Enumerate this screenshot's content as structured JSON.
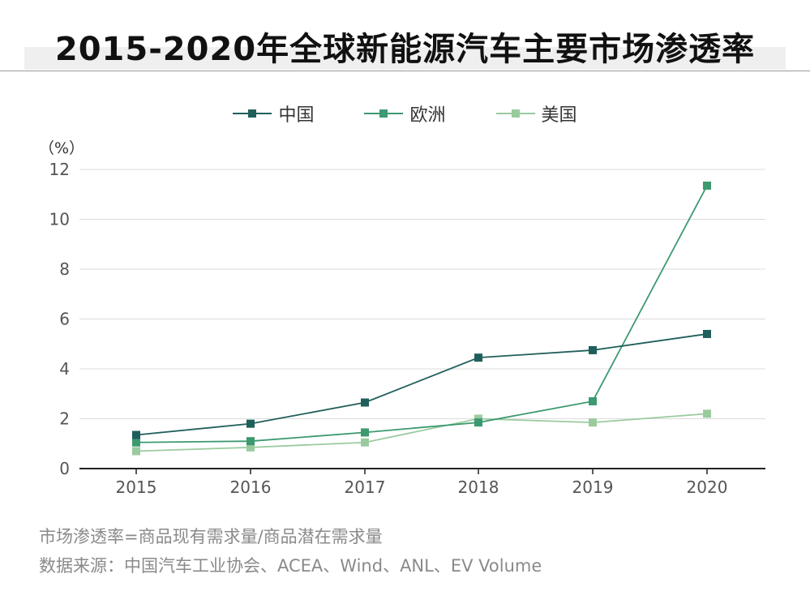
{
  "title": "2015-2020年全球新能源汽车主要市场渗透率",
  "unit_label": "（%）",
  "legend": [
    {
      "label": "中国",
      "color": "#1f5f5b"
    },
    {
      "label": "欧洲",
      "color": "#3d9970"
    },
    {
      "label": "美国",
      "color": "#9acb9e"
    }
  ],
  "chart_data": {
    "type": "line",
    "x": [
      "2015",
      "2016",
      "2017",
      "2018",
      "2019",
      "2020"
    ],
    "series": [
      {
        "name": "中国",
        "color": "#1f5f5b",
        "values": [
          1.35,
          1.8,
          2.65,
          4.45,
          4.75,
          5.4
        ]
      },
      {
        "name": "欧洲",
        "color": "#3d9970",
        "values": [
          1.05,
          1.1,
          1.45,
          1.85,
          2.7,
          11.35
        ]
      },
      {
        "name": "美国",
        "color": "#9acb9e",
        "values": [
          0.7,
          0.85,
          1.05,
          2.0,
          1.85,
          2.2
        ]
      }
    ],
    "ylim": [
      0,
      12
    ],
    "yticks": [
      0,
      2,
      4,
      6,
      8,
      10,
      12
    ],
    "ylabel": "（%）",
    "xlabel": "",
    "grid": true,
    "legend_position": "top-center"
  },
  "notes": {
    "definition": "市场渗透率=商品现有需求量/商品潜在需求量",
    "source": "数据来源：中国汽车工业协会、ACEA、Wind、ANL、EV Volume"
  }
}
